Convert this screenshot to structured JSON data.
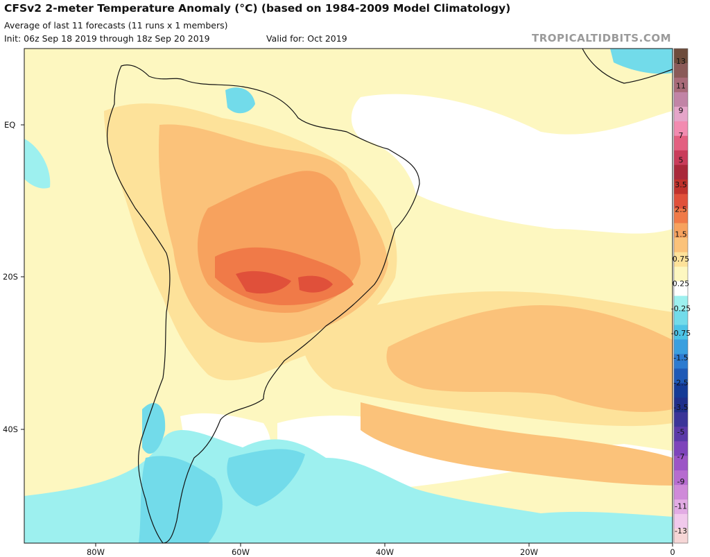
{
  "header": {
    "title": "CFSv2 2-meter Temperature Anomaly (°C) (based on 1984-2009 Model Climatology)",
    "subtitle": "Average of last 11 forecasts (11 runs x 1 members)",
    "init": "Init: 06z Sep 18 2019 through 18z Sep 20 2019",
    "valid": "Valid for: Oct 2019",
    "brand": "TROPICALTIDBITS.COM"
  },
  "map": {
    "latitude_labels": [
      "EQ",
      "20S",
      "40S"
    ],
    "longitude_labels": [
      "80W",
      "60W",
      "40W",
      "20W",
      "0"
    ]
  },
  "colorbar": {
    "labels": [
      "13",
      "11",
      "9",
      "7",
      "5",
      "3.5",
      "2.5",
      "1.5",
      "0.75",
      "0.25",
      "-0.25",
      "-0.75",
      "-1.5",
      "-2.5",
      "-3.5",
      "-5",
      "-7",
      "-9",
      "-11",
      "-13"
    ],
    "colors": [
      "#6e4c3c",
      "#8a5a58",
      "#a86a78",
      "#c184a6",
      "#e5a5c9",
      "#f28bb0",
      "#e35f80",
      "#c93c5a",
      "#a9283a",
      "#c0322c",
      "#e0503a",
      "#f07a48",
      "#f7a25e",
      "#fbc27a",
      "#fde29a",
      "#fdf7c0",
      "#ffffff",
      "#9df0ef",
      "#72dbea",
      "#4cc3e6",
      "#3a9fdf",
      "#2c7bd0",
      "#1f5ab6",
      "#153b96",
      "#1f2f8a",
      "#3a3598",
      "#5b3aa8",
      "#7e44bb",
      "#9c55c6",
      "#b66ccf",
      "#cf8ad9",
      "#e2abe4",
      "#f1c9ec",
      "#f6d6d6"
    ]
  }
}
